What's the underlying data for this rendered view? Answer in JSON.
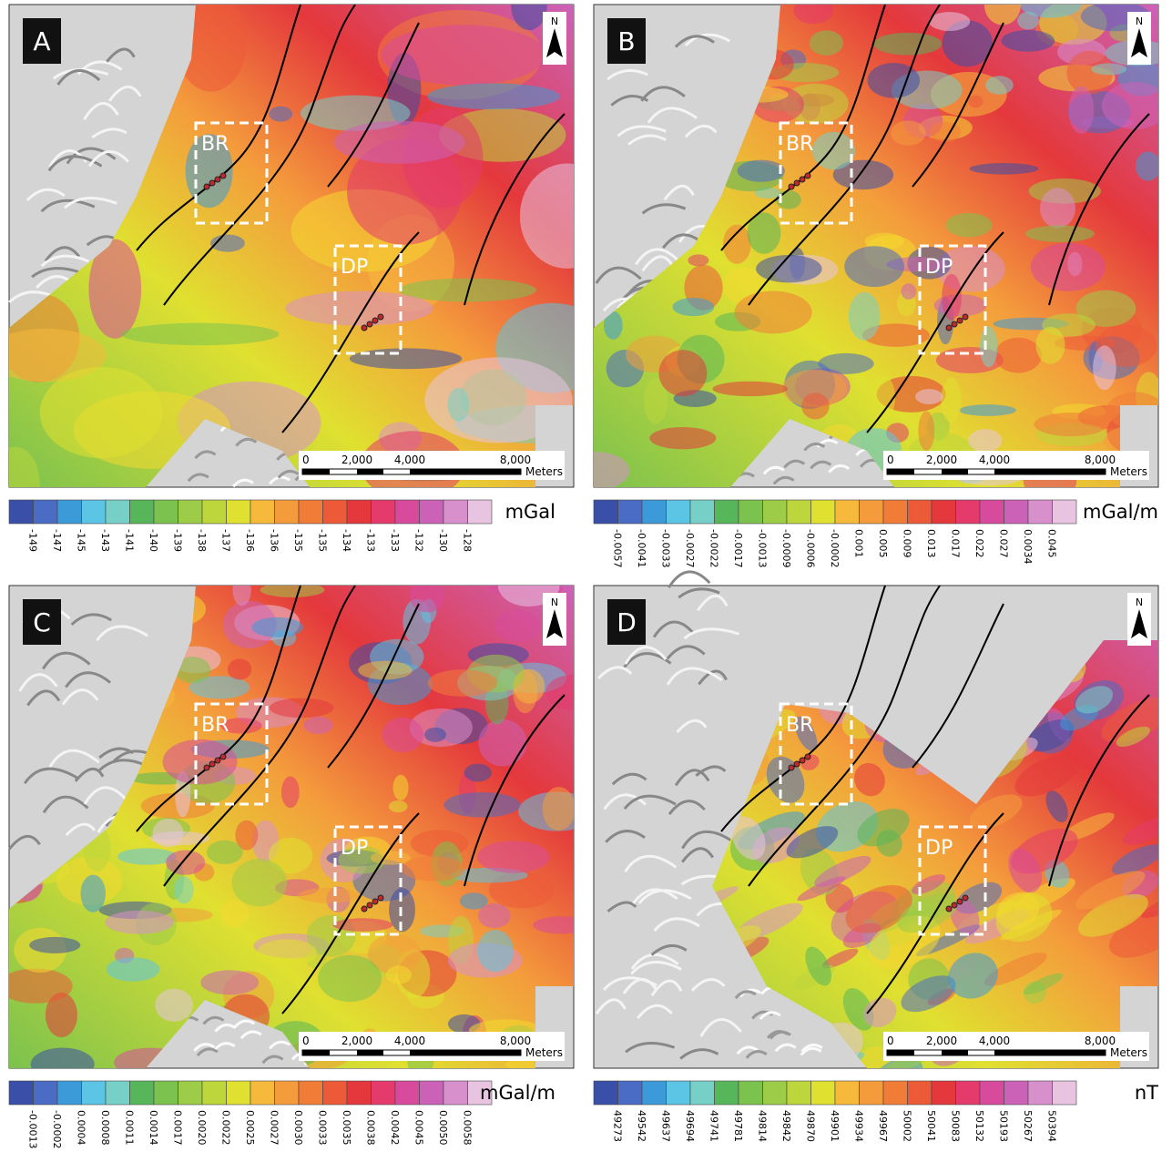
{
  "panels": [
    {
      "label": "A",
      "boxes": [
        "BR",
        "DP"
      ],
      "north": "N",
      "scale": {
        "ticks": [
          "0",
          "2,000",
          "4,000",
          "8,000"
        ],
        "unit": "Meters"
      },
      "legend": {
        "labels": [
          "-149",
          "-147",
          "-145",
          "-143",
          "-141",
          "-140",
          "-139",
          "-138",
          "-137",
          "-136",
          "-136",
          "-135",
          "-135",
          "-134",
          "-133",
          "-133",
          "-132",
          "-130",
          "-128"
        ],
        "unit": "mGal"
      }
    },
    {
      "label": "B",
      "boxes": [
        "BR",
        "DP"
      ],
      "north": "N",
      "scale": {
        "ticks": [
          "0",
          "2,000",
          "4,000",
          "8,000"
        ],
        "unit": "Meters"
      },
      "legend": {
        "labels": [
          "-0.0057",
          "-0.0041",
          "-0.0033",
          "-0.0027",
          "-0.0022",
          "-0.0017",
          "-0.0013",
          "-0.0009",
          "-0.0006",
          "-0.0002",
          "0.001",
          "0.005",
          "0.009",
          "0.013",
          "0.017",
          "0.022",
          "0.027",
          "0.0034",
          "0.045"
        ],
        "unit": "mGal/m"
      }
    },
    {
      "label": "C",
      "boxes": [
        "BR",
        "DP"
      ],
      "north": "N",
      "scale": {
        "ticks": [
          "0",
          "2,000",
          "4,000",
          "8,000"
        ],
        "unit": "Meters"
      },
      "legend": {
        "labels": [
          "-0.0013",
          "-0.0002",
          "0.0004",
          "0.0008",
          "0.0011",
          "0.0014",
          "0.0017",
          "0.0020",
          "0.0022",
          "0.0025",
          "0.0027",
          "0.0030",
          "0.0033",
          "0.0035",
          "0.0038",
          "0.0042",
          "0.0045",
          "0.0050",
          "0.0058"
        ],
        "unit": "mGal/m"
      }
    },
    {
      "label": "D",
      "boxes": [
        "BR",
        "DP"
      ],
      "north": "N",
      "scale": {
        "ticks": [
          "0",
          "2,000",
          "4,000",
          "8,000"
        ],
        "unit": "Meters"
      },
      "legend": {
        "labels": [
          "49273",
          "49542",
          "49637",
          "49694",
          "49741",
          "49781",
          "49814",
          "49842",
          "49870",
          "49901",
          "49934",
          "49967",
          "50002",
          "50041",
          "50083",
          "50132",
          "50193",
          "50267",
          "50394"
        ],
        "unit": "nT"
      }
    }
  ]
}
